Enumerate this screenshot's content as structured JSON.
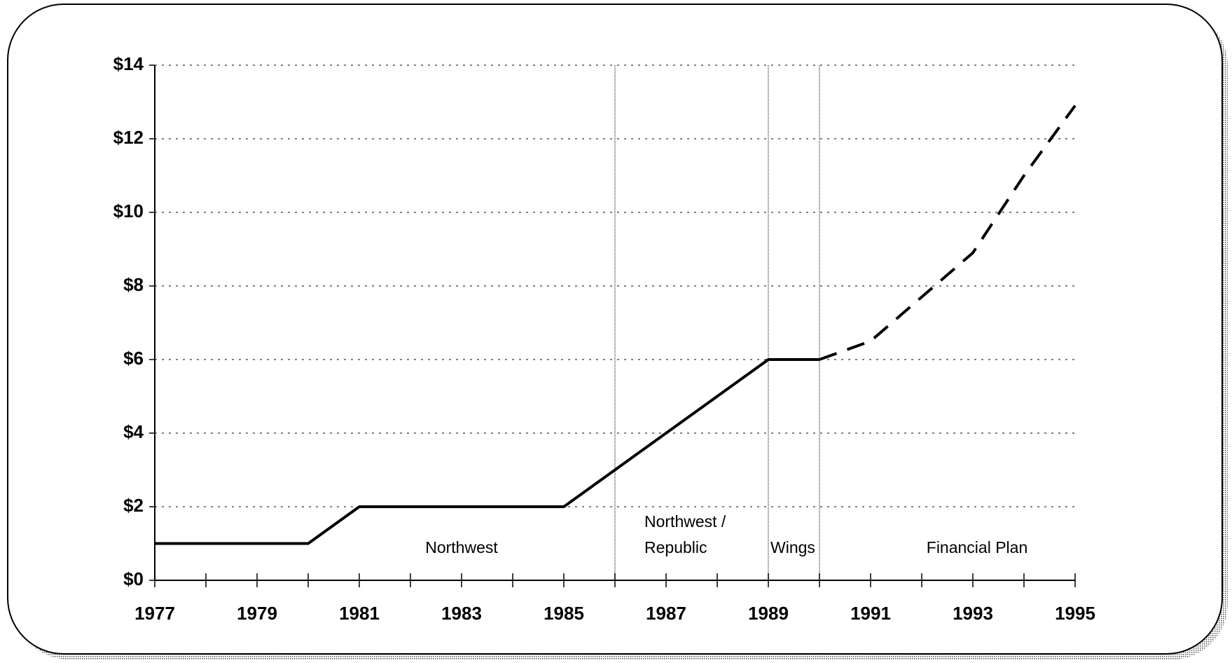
{
  "chart_data": {
    "type": "line",
    "x": [
      1977,
      1978,
      1979,
      1980,
      1981,
      1982,
      1983,
      1984,
      1985,
      1986,
      1987,
      1988,
      1989,
      1990,
      1991,
      1992,
      1993,
      1994,
      1995
    ],
    "series": [
      {
        "color": "#000000",
        "dashed": false,
        "values": [
          1,
          1,
          1,
          1,
          2,
          2,
          2,
          2,
          2,
          3,
          4,
          5,
          6,
          6,
          null,
          null,
          null,
          null,
          null
        ]
      },
      {
        "color": "#000000",
        "dashed": true,
        "values": [
          null,
          null,
          null,
          null,
          null,
          null,
          null,
          null,
          null,
          null,
          null,
          null,
          null,
          6,
          6.5,
          7.7,
          8.9,
          11,
          12.9
        ]
      }
    ],
    "xlim": [
      1977,
      1995
    ],
    "xticks": [
      1977,
      1979,
      1981,
      1983,
      1985,
      1987,
      1989,
      1991,
      1993,
      1995
    ],
    "xminor": [
      1977,
      1978,
      1979,
      1980,
      1981,
      1982,
      1983,
      1984,
      1985,
      1986,
      1987,
      1988,
      1989,
      1990,
      1991,
      1992,
      1993,
      1994,
      1995
    ],
    "ylim": [
      0,
      14
    ],
    "yticks": [
      {
        "value": 0,
        "label": "$0"
      },
      {
        "value": 2,
        "label": "$2"
      },
      {
        "value": 4,
        "label": "$4"
      },
      {
        "value": 6,
        "label": "$6"
      },
      {
        "value": 8,
        "label": "$8"
      },
      {
        "value": 10,
        "label": "$10"
      },
      {
        "value": 12,
        "label": "$12"
      },
      {
        "value": 14,
        "label": "$14"
      }
    ],
    "grid": true,
    "dividers": [
      1986,
      1989,
      1990
    ],
    "annotations": [
      {
        "lines": [
          "Northwest"
        ]
      },
      {
        "lines": [
          "Northwest /",
          "Republic"
        ]
      },
      {
        "lines": [
          "Wings"
        ]
      },
      {
        "lines": [
          "Financial Plan"
        ]
      }
    ]
  }
}
